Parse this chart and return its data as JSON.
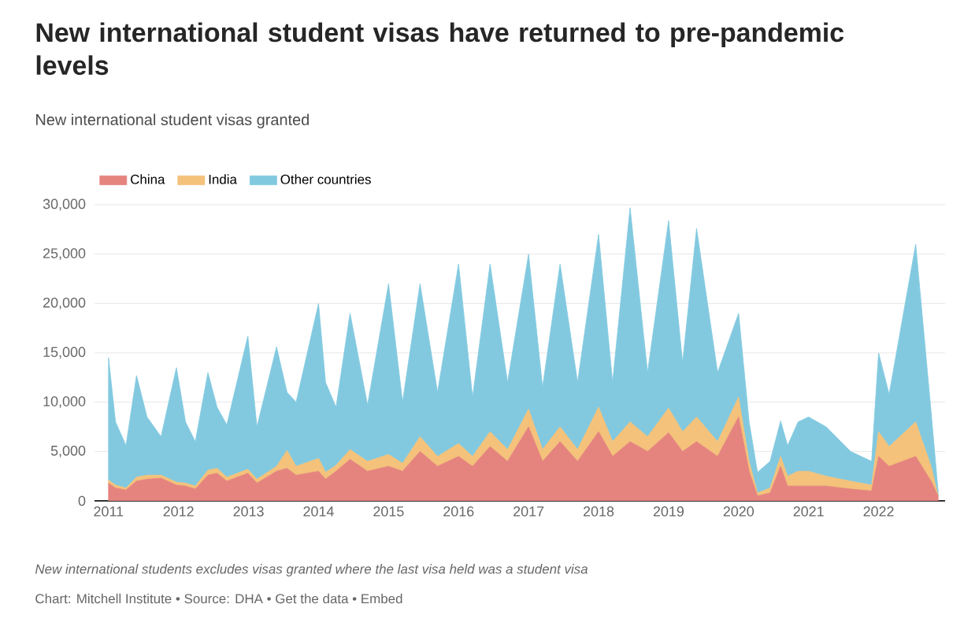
{
  "chart_data": {
    "type": "area",
    "stacked": true,
    "title": "New international student visas have returned to pre-pandemic levels",
    "subtitle": "New international student visas granted",
    "annotations": [
      "New international students excludes visas granted where the last visa held was a student visa",
      "Chart: Mitchell Institute • Source: DHA • Get the data • Embed"
    ],
    "x": [
      2011.0,
      2011.1,
      2011.25,
      2011.4,
      2011.55,
      2011.75,
      2011.97,
      2012.1,
      2012.24,
      2012.42,
      2012.55,
      2012.69,
      2012.99,
      2013.12,
      2013.4,
      2013.55,
      2013.68,
      2014.0,
      2014.1,
      2014.25,
      2014.45,
      2014.7,
      2015.0,
      2015.2,
      2015.45,
      2015.7,
      2016.0,
      2016.2,
      2016.45,
      2016.7,
      2017.0,
      2017.2,
      2017.45,
      2017.7,
      2018.0,
      2018.2,
      2018.45,
      2018.7,
      2019.0,
      2019.2,
      2019.4,
      2019.7,
      2020.0,
      2020.15,
      2020.27,
      2020.45,
      2020.6,
      2020.7,
      2020.85,
      2021.0,
      2021.25,
      2021.6,
      2021.9,
      2022.0,
      2022.15,
      2022.53,
      2022.75,
      2022.85
    ],
    "series": [
      {
        "name": "China",
        "color": "#e5847f",
        "values": [
          1800,
          1300,
          1100,
          2000,
          2200,
          2300,
          1600,
          1500,
          1200,
          2600,
          2800,
          2000,
          2800,
          1800,
          3000,
          3300,
          2600,
          3000,
          2200,
          3000,
          4200,
          3000,
          3500,
          3000,
          5000,
          3500,
          4500,
          3500,
          5500,
          4000,
          7500,
          4000,
          6000,
          4000,
          7000,
          4500,
          6000,
          5000,
          6900,
          5000,
          6000,
          4500,
          8500,
          3000,
          500,
          800,
          3500,
          1500,
          1500,
          1500,
          1500,
          1200,
          1000,
          4500,
          3500,
          4500,
          2000,
          500
        ]
      },
      {
        "name": "India",
        "color": "#f4c27a",
        "values": [
          300,
          300,
          200,
          400,
          400,
          300,
          300,
          300,
          300,
          500,
          500,
          400,
          400,
          400,
          500,
          1800,
          900,
          1300,
          700,
          600,
          1000,
          1000,
          1200,
          800,
          1500,
          1000,
          1300,
          1000,
          1500,
          1200,
          1800,
          1200,
          1500,
          1200,
          2500,
          1500,
          2000,
          1500,
          2500,
          2000,
          2500,
          1500,
          2000,
          1000,
          300,
          500,
          1000,
          1000,
          1500,
          1500,
          1000,
          800,
          600,
          2500,
          2000,
          3500,
          1500,
          0
        ]
      },
      {
        "name": "Other countries",
        "color": "#82c9e0",
        "values": [
          12400,
          6400,
          4300,
          10300,
          5900,
          3900,
          11600,
          6200,
          4500,
          9900,
          6200,
          5300,
          13500,
          5300,
          12100,
          5900,
          6500,
          15700,
          9100,
          5900,
          13800,
          5700,
          17300,
          6200,
          15500,
          6500,
          18200,
          6000,
          17000,
          6800,
          15700,
          6300,
          16500,
          6800,
          17500,
          6000,
          21700,
          6500,
          19000,
          7000,
          19100,
          7000,
          8500,
          4000,
          2100,
          2700,
          3600,
          3100,
          5000,
          5500,
          5000,
          3000,
          2400,
          8000,
          5300,
          18000,
          5500,
          500
        ]
      }
    ],
    "xlim": [
      2010.8,
      2022.95
    ],
    "xticks": [
      2011,
      2012,
      2013,
      2014,
      2015,
      2016,
      2017,
      2018,
      2019,
      2020,
      2021,
      2022
    ],
    "ylim": [
      0,
      30000
    ],
    "yticks": [
      0,
      {
        "value": 5000,
        "label": "5,000"
      },
      {
        "value": 10000,
        "label": "10,000"
      },
      {
        "value": 15000,
        "label": "15,000"
      },
      {
        "value": 20000,
        "label": "20,000"
      },
      {
        "value": 25000,
        "label": "25,000"
      },
      {
        "value": 30000,
        "label": "30,000"
      }
    ],
    "grid": "y",
    "legend": "top left"
  }
}
